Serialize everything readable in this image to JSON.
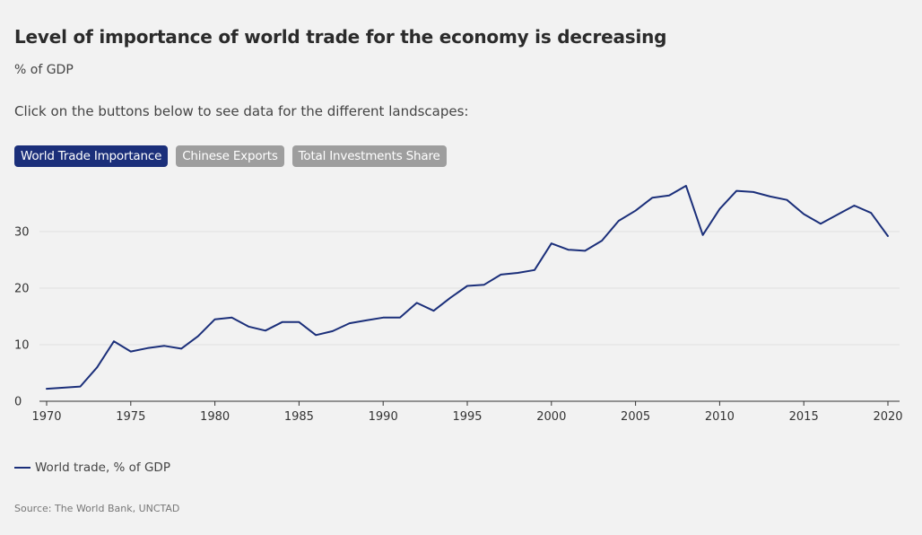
{
  "header": {
    "title": "Level of importance of world trade for the economy is decreasing",
    "subtitle": "% of GDP",
    "instruction": "Click on the buttons below to see data for the different landscapes:"
  },
  "buttons": [
    {
      "label": "World Trade Importance",
      "active": true
    },
    {
      "label": "Chinese Exports",
      "active": false
    },
    {
      "label": "Total Investments Share",
      "active": false
    }
  ],
  "colors": {
    "accent": "#1b2f7a",
    "button_inactive": "#9e9e9e",
    "background": "#f2f2f2",
    "grid": "#e0e0e0"
  },
  "chart_data": {
    "type": "line",
    "grid": "horizontal",
    "legend_placement": "bottom-left",
    "xlim": [
      1970,
      2020
    ],
    "ylim": [
      0,
      40
    ],
    "x_ticks": [
      "1970",
      "1975",
      "1980",
      "1985",
      "1990",
      "1995",
      "2000",
      "2005",
      "2010",
      "2015",
      "2020"
    ],
    "y_ticks": [
      "0",
      "10",
      "20",
      "30"
    ],
    "x": [
      1970,
      1971,
      1972,
      1973,
      1974,
      1975,
      1976,
      1977,
      1978,
      1979,
      1980,
      1981,
      1982,
      1983,
      1984,
      1985,
      1986,
      1987,
      1988,
      1989,
      1990,
      1991,
      1992,
      1993,
      1994,
      1995,
      1996,
      1997,
      1998,
      1999,
      2000,
      2001,
      2002,
      2003,
      2004,
      2005,
      2006,
      2007,
      2008,
      2009,
      2010,
      2011,
      2012,
      2013,
      2014,
      2015,
      2016,
      2017,
      2018,
      2019,
      2020
    ],
    "series": [
      {
        "name": "World trade, % of GDP",
        "values": [
          2.2,
          2.4,
          2.6,
          6.0,
          10.6,
          8.8,
          9.4,
          9.8,
          9.3,
          11.5,
          14.5,
          14.8,
          13.2,
          12.5,
          14.0,
          14.0,
          11.7,
          12.4,
          13.8,
          14.3,
          14.8,
          14.8,
          17.4,
          16.0,
          18.3,
          20.4,
          20.6,
          22.4,
          22.7,
          23.2,
          27.9,
          26.8,
          26.6,
          28.4,
          31.9,
          33.7,
          36.0,
          36.4,
          38.1,
          29.4,
          34.0,
          37.2,
          37.0,
          36.2,
          35.6,
          33.1,
          31.4,
          33.0,
          34.6,
          33.3,
          29.2
        ]
      }
    ]
  },
  "legend": {
    "label": "World trade, % of GDP"
  },
  "source": "Source: The World Bank, UNCTAD"
}
